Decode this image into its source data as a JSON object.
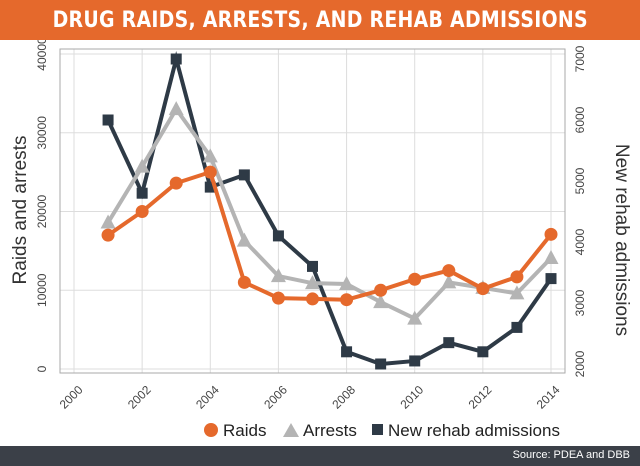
{
  "title": "DRUG RAIDS, ARRESTS, AND REHAB ADMISSIONS",
  "source": "Source: PDEA and DBB",
  "colors": {
    "title_bg": "#e5692c",
    "footer_bg": "#3b4048",
    "raids": "#e5692c",
    "arrests": "#b4b4b4",
    "rehab": "#2e3a46"
  },
  "chart_data": {
    "type": "line",
    "x": [
      2001,
      2002,
      2003,
      2004,
      2005,
      2006,
      2007,
      2008,
      2009,
      2010,
      2011,
      2012,
      2013,
      2014
    ],
    "xticks": [
      "2000",
      "2002",
      "2004",
      "2006",
      "2008",
      "2010",
      "2012",
      "2014"
    ],
    "xlim": [
      2000,
      2014
    ],
    "ylabel_left": "Raids and arrests",
    "ylabel_right": "New rehab admissions",
    "ylim_left": [
      0,
      40000
    ],
    "yticks_left": [
      "0",
      "10000",
      "20000",
      "30000",
      "40000"
    ],
    "ylim_right": [
      2000,
      7000
    ],
    "yticks_right": [
      "2000",
      "3000",
      "4000",
      "5000",
      "6000",
      "7000"
    ],
    "grid": true,
    "legend_position": "bottom-right",
    "series": [
      {
        "name": "Raids",
        "axis": "left",
        "marker": "circle",
        "values": [
          17000,
          20000,
          23600,
          25000,
          11000,
          9000,
          8900,
          8800,
          10000,
          11400,
          12500,
          10200,
          11700,
          17100
        ]
      },
      {
        "name": "Arrests",
        "axis": "left",
        "marker": "triangle",
        "values": [
          18600,
          25700,
          33000,
          27000,
          16300,
          11800,
          10900,
          10800,
          8500,
          6400,
          11000,
          10300,
          9600,
          14100
        ]
      },
      {
        "name": "New rehab admissions",
        "axis": "right",
        "marker": "square",
        "values": [
          6000,
          4800,
          7000,
          4900,
          5100,
          4100,
          3600,
          2200,
          2000,
          2050,
          2350,
          2200,
          2600,
          3400
        ]
      }
    ]
  }
}
